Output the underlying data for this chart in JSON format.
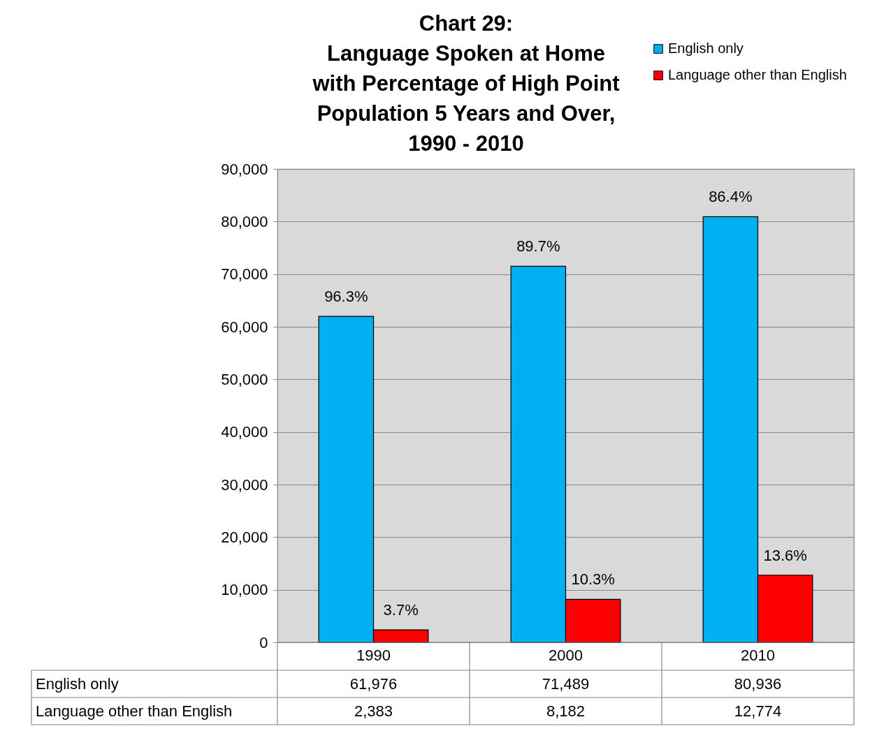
{
  "chart_data": {
    "type": "bar",
    "title": [
      "Chart 29:",
      "Language Spoken at Home",
      "with Percentage of High Point",
      "Population 5 Years and Over,",
      "1990 - 2010"
    ],
    "categories": [
      "1990",
      "2000",
      "2010"
    ],
    "series": [
      {
        "name": "English only",
        "color": "#00b0f0",
        "values": [
          61976,
          71489,
          80936
        ],
        "value_labels": [
          "61,976",
          "71,489",
          "80,936"
        ]
      },
      {
        "name": "Language other than English",
        "color": "#ff0000",
        "values": [
          2383,
          8182,
          12774
        ],
        "value_labels": [
          "2,383",
          "8,182",
          "12,774"
        ]
      }
    ],
    "annotations": [
      {
        "text": "96.3%",
        "x": "1990",
        "y": 61976
      },
      {
        "text": "89.7%",
        "x": "2000",
        "y": 71489
      },
      {
        "text": "86.4%",
        "x": "2010",
        "y": 80936
      },
      {
        "text": "3.7%",
        "x": "1990",
        "y": 2383
      },
      {
        "text": "10.3%",
        "x": "2000",
        "y": 8182
      },
      {
        "text": "13.6%",
        "x": "2010",
        "y": 12774
      }
    ],
    "ylim": [
      0,
      90000
    ],
    "yticks": [
      0,
      {
        "value": 10000,
        "label": "10,000"
      },
      {
        "value": 20000,
        "label": "20,000"
      },
      {
        "value": 30000,
        "label": "30,000"
      },
      {
        "value": 40000,
        "label": "40,000"
      },
      {
        "value": 50000,
        "label": "50,000"
      },
      {
        "value": 60000,
        "label": "60,000"
      },
      {
        "value": 70000,
        "label": "70,000"
      },
      {
        "value": 80000,
        "label": "80,000"
      },
      {
        "value": 90000,
        "label": "90,000"
      }
    ],
    "grid": "y",
    "legend": "top right"
  }
}
